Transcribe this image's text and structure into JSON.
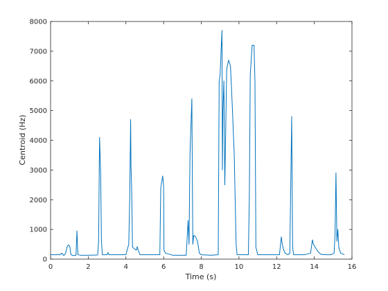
{
  "chart_data": {
    "type": "line",
    "xlabel": "Time (s)",
    "ylabel": "Centroid (Hz)",
    "xlim": [
      0,
      16
    ],
    "ylim": [
      0,
      8000
    ],
    "xticks": [
      0,
      2,
      4,
      6,
      8,
      10,
      12,
      14,
      16
    ],
    "yticks": [
      0,
      1000,
      2000,
      3000,
      4000,
      5000,
      6000,
      7000,
      8000
    ],
    "grid": false,
    "series": [
      {
        "color": "#0072BD",
        "points": [
          [
            0.0,
            150
          ],
          [
            0.5,
            150
          ],
          [
            0.6,
            200
          ],
          [
            0.7,
            120
          ],
          [
            0.8,
            200
          ],
          [
            0.88,
            420
          ],
          [
            0.95,
            480
          ],
          [
            1.02,
            430
          ],
          [
            1.08,
            150
          ],
          [
            1.2,
            120
          ],
          [
            1.35,
            130
          ],
          [
            1.4,
            950
          ],
          [
            1.45,
            150
          ],
          [
            1.6,
            130
          ],
          [
            2.0,
            130
          ],
          [
            2.5,
            140
          ],
          [
            2.55,
            600
          ],
          [
            2.6,
            4100
          ],
          [
            2.63,
            3500
          ],
          [
            2.66,
            2800
          ],
          [
            2.7,
            600
          ],
          [
            2.75,
            150
          ],
          [
            3.0,
            150
          ],
          [
            3.05,
            220
          ],
          [
            3.1,
            150
          ],
          [
            3.5,
            150
          ],
          [
            4.0,
            150
          ],
          [
            4.15,
            500
          ],
          [
            4.2,
            2000
          ],
          [
            4.25,
            4700
          ],
          [
            4.27,
            3100
          ],
          [
            4.3,
            2500
          ],
          [
            4.35,
            400
          ],
          [
            4.45,
            350
          ],
          [
            4.55,
            300
          ],
          [
            4.6,
            420
          ],
          [
            4.65,
            300
          ],
          [
            4.75,
            150
          ],
          [
            5.5,
            150
          ],
          [
            5.8,
            150
          ],
          [
            5.85,
            2400
          ],
          [
            5.9,
            2600
          ],
          [
            5.95,
            2800
          ],
          [
            6.0,
            2500
          ],
          [
            6.02,
            300
          ],
          [
            6.1,
            200
          ],
          [
            6.5,
            130
          ],
          [
            7.2,
            130
          ],
          [
            7.25,
            700
          ],
          [
            7.3,
            1300
          ],
          [
            7.35,
            500
          ],
          [
            7.4,
            3500
          ],
          [
            7.5,
            5400
          ],
          [
            7.55,
            500
          ],
          [
            7.6,
            800
          ],
          [
            7.7,
            750
          ],
          [
            7.8,
            600
          ],
          [
            7.9,
            200
          ],
          [
            8.0,
            150
          ],
          [
            8.5,
            130
          ],
          [
            8.9,
            150
          ],
          [
            8.95,
            6000
          ],
          [
            9.0,
            6200
          ],
          [
            9.05,
            7000
          ],
          [
            9.1,
            7700
          ],
          [
            9.12,
            3000
          ],
          [
            9.15,
            5000
          ],
          [
            9.2,
            6000
          ],
          [
            9.25,
            2500
          ],
          [
            9.35,
            6400
          ],
          [
            9.45,
            6700
          ],
          [
            9.55,
            6500
          ],
          [
            9.65,
            5100
          ],
          [
            9.75,
            3500
          ],
          [
            9.85,
            500
          ],
          [
            9.9,
            150
          ],
          [
            10.3,
            150
          ],
          [
            10.5,
            150
          ],
          [
            10.55,
            2000
          ],
          [
            10.6,
            6200
          ],
          [
            10.7,
            7200
          ],
          [
            10.8,
            7200
          ],
          [
            10.85,
            6000
          ],
          [
            10.9,
            400
          ],
          [
            11.0,
            150
          ],
          [
            11.5,
            150
          ],
          [
            12.0,
            150
          ],
          [
            12.15,
            150
          ],
          [
            12.2,
            450
          ],
          [
            12.25,
            750
          ],
          [
            12.3,
            500
          ],
          [
            12.35,
            350
          ],
          [
            12.45,
            200
          ],
          [
            12.6,
            150
          ],
          [
            12.7,
            200
          ],
          [
            12.8,
            4800
          ],
          [
            12.85,
            400
          ],
          [
            12.9,
            150
          ],
          [
            13.5,
            150
          ],
          [
            13.8,
            200
          ],
          [
            13.9,
            650
          ],
          [
            13.95,
            500
          ],
          [
            14.05,
            400
          ],
          [
            14.2,
            250
          ],
          [
            14.35,
            160
          ],
          [
            14.6,
            150
          ],
          [
            14.9,
            150
          ],
          [
            15.05,
            200
          ],
          [
            15.1,
            800
          ],
          [
            15.15,
            2900
          ],
          [
            15.2,
            600
          ],
          [
            15.25,
            1000
          ],
          [
            15.3,
            400
          ],
          [
            15.4,
            200
          ],
          [
            15.6,
            150
          ]
        ]
      }
    ]
  }
}
